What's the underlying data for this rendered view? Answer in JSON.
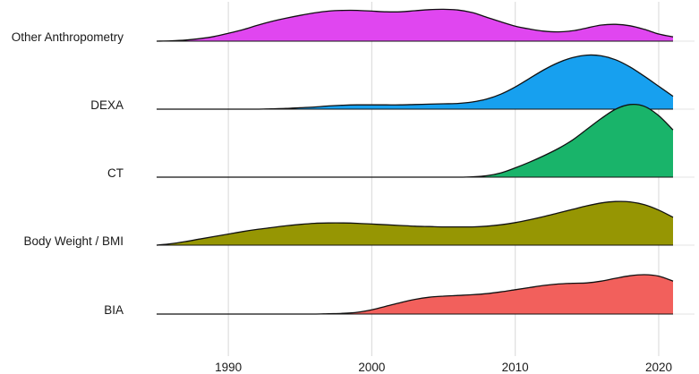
{
  "chart_data": {
    "type": "ridgeline",
    "title": "",
    "xlabel": "",
    "ylabel": "",
    "xlim": [
      1985,
      2021
    ],
    "x_ticks": [
      1990,
      2000,
      2010,
      2020
    ],
    "grid": true,
    "legend": "none",
    "categories": [
      "Other Anthropometry",
      "DEXA",
      "CT",
      "Body Weight / BMI",
      "BIA"
    ],
    "series": [
      {
        "name": "Other Anthropometry",
        "color": "#e046f0",
        "x": [
          1985,
          1986,
          1987,
          1988,
          1989,
          1990,
          1991,
          1992,
          1993,
          1994,
          1995,
          1996,
          1997,
          1998,
          1999,
          2000,
          2001,
          2002,
          2003,
          2004,
          2005,
          2006,
          2007,
          2008,
          2009,
          2010,
          2011,
          2012,
          2013,
          2014,
          2015,
          2016,
          2017,
          2018,
          2019,
          2020,
          2021
        ],
        "y": [
          0.0,
          0.01,
          0.03,
          0.07,
          0.13,
          0.22,
          0.32,
          0.44,
          0.55,
          0.64,
          0.72,
          0.79,
          0.84,
          0.86,
          0.86,
          0.84,
          0.82,
          0.82,
          0.85,
          0.88,
          0.89,
          0.87,
          0.8,
          0.67,
          0.54,
          0.42,
          0.34,
          0.28,
          0.26,
          0.29,
          0.37,
          0.45,
          0.47,
          0.43,
          0.33,
          0.2,
          0.12
        ]
      },
      {
        "name": "DEXA",
        "color": "#17a0ef",
        "x": [
          1985,
          1986,
          1987,
          1988,
          1989,
          1990,
          1991,
          1992,
          1993,
          1994,
          1995,
          1996,
          1997,
          1998,
          1999,
          2000,
          2001,
          2002,
          2003,
          2004,
          2005,
          2006,
          2007,
          2008,
          2009,
          2010,
          2011,
          2012,
          2013,
          2014,
          2015,
          2016,
          2017,
          2018,
          2019,
          2020,
          2021
        ],
        "y": [
          0.0,
          0.0,
          0.0,
          0.0,
          0.0,
          0.0,
          0.0,
          0.0,
          0.01,
          0.02,
          0.04,
          0.06,
          0.09,
          0.11,
          0.12,
          0.12,
          0.12,
          0.12,
          0.13,
          0.14,
          0.15,
          0.16,
          0.2,
          0.28,
          0.42,
          0.62,
          0.86,
          1.1,
          1.3,
          1.44,
          1.51,
          1.49,
          1.38,
          1.18,
          0.92,
          0.64,
          0.36
        ]
      },
      {
        "name": "CT",
        "color": "#19b46a",
        "x": [
          1985,
          1986,
          1987,
          1988,
          1989,
          1990,
          1991,
          1992,
          1993,
          1994,
          1995,
          1996,
          1997,
          1998,
          1999,
          2000,
          2001,
          2002,
          2003,
          2004,
          2005,
          2006,
          2007,
          2008,
          2009,
          2010,
          2011,
          2012,
          2013,
          2014,
          2015,
          2016,
          2017,
          2018,
          2019,
          2020,
          2021
        ],
        "y": [
          0.0,
          0.0,
          0.0,
          0.0,
          0.0,
          0.0,
          0.0,
          0.0,
          0.0,
          0.0,
          0.0,
          0.0,
          0.0,
          0.0,
          0.0,
          0.0,
          0.0,
          0.0,
          0.0,
          0.0,
          0.0,
          0.0,
          0.01,
          0.04,
          0.12,
          0.26,
          0.42,
          0.6,
          0.8,
          1.04,
          1.34,
          1.64,
          1.9,
          2.03,
          1.98,
          1.72,
          1.32
        ]
      },
      {
        "name": "Body Weight / BMI",
        "color": "#969603",
        "x": [
          1985,
          1986,
          1987,
          1988,
          1989,
          1990,
          1991,
          1992,
          1993,
          1994,
          1995,
          1996,
          1997,
          1998,
          1999,
          2000,
          2001,
          2002,
          2003,
          2004,
          2005,
          2006,
          2007,
          2008,
          2009,
          2010,
          2011,
          2012,
          2013,
          2014,
          2015,
          2016,
          2017,
          2018,
          2019,
          2020,
          2021
        ],
        "y": [
          0.0,
          0.04,
          0.1,
          0.17,
          0.24,
          0.31,
          0.38,
          0.44,
          0.49,
          0.54,
          0.58,
          0.61,
          0.62,
          0.62,
          0.61,
          0.59,
          0.57,
          0.55,
          0.53,
          0.52,
          0.51,
          0.51,
          0.51,
          0.53,
          0.57,
          0.63,
          0.71,
          0.8,
          0.9,
          1.0,
          1.1,
          1.18,
          1.22,
          1.21,
          1.13,
          0.98,
          0.78
        ]
      },
      {
        "name": "BIA",
        "color": "#f2605c",
        "x": [
          1985,
          1986,
          1987,
          1988,
          1989,
          1990,
          1991,
          1992,
          1993,
          1994,
          1995,
          1996,
          1997,
          1998,
          1999,
          2000,
          2001,
          2002,
          2003,
          2004,
          2005,
          2006,
          2007,
          2008,
          2009,
          2010,
          2011,
          2012,
          2013,
          2014,
          2015,
          2016,
          2017,
          2018,
          2019,
          2020,
          2021
        ],
        "y": [
          0.0,
          0.0,
          0.0,
          0.0,
          0.0,
          0.0,
          0.0,
          0.0,
          0.0,
          0.0,
          0.0,
          0.0,
          0.01,
          0.02,
          0.05,
          0.12,
          0.22,
          0.32,
          0.41,
          0.47,
          0.5,
          0.52,
          0.54,
          0.57,
          0.62,
          0.68,
          0.74,
          0.8,
          0.84,
          0.86,
          0.87,
          0.92,
          1.0,
          1.07,
          1.1,
          1.06,
          0.92
        ]
      }
    ]
  }
}
